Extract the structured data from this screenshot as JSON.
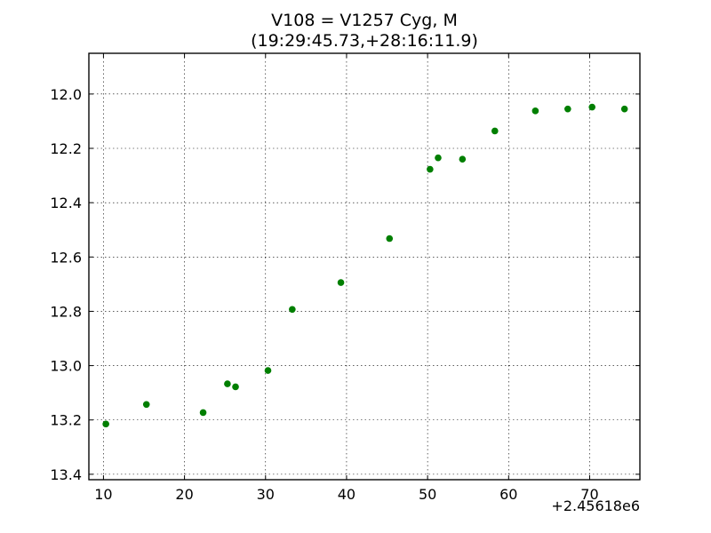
{
  "chart_data": {
    "type": "scatter",
    "title": "V108 = V1257 Cyg, M",
    "subtitle": "(19:29:45.73,+28:16:11.9)",
    "xlabel": "",
    "ylabel": "",
    "x_offset_label": "+2.45618e6",
    "xlim": [
      8.2,
      76.2
    ],
    "ylim": [
      13.42,
      11.85
    ],
    "y_inverted": true,
    "grid": true,
    "marker_color": "#007f00",
    "x_ticks": [
      10,
      20,
      30,
      40,
      50,
      60,
      70
    ],
    "x_tick_labels": [
      "10",
      "20",
      "30",
      "40",
      "50",
      "60",
      "70"
    ],
    "y_ticks": [
      12.0,
      12.2,
      12.4,
      12.6,
      12.8,
      13.0,
      13.2,
      13.4
    ],
    "y_tick_labels": [
      "12.0",
      "12.2",
      "12.4",
      "12.6",
      "12.8",
      "13.0",
      "13.2",
      "13.4"
    ],
    "points": [
      {
        "x": 10.3,
        "y": 13.215
      },
      {
        "x": 15.3,
        "y": 13.143
      },
      {
        "x": 22.3,
        "y": 13.173
      },
      {
        "x": 25.3,
        "y": 13.067
      },
      {
        "x": 26.3,
        "y": 13.078
      },
      {
        "x": 30.3,
        "y": 13.018
      },
      {
        "x": 33.3,
        "y": 12.793
      },
      {
        "x": 39.3,
        "y": 12.694
      },
      {
        "x": 45.3,
        "y": 12.532
      },
      {
        "x": 50.3,
        "y": 12.277
      },
      {
        "x": 51.3,
        "y": 12.235
      },
      {
        "x": 54.3,
        "y": 12.24
      },
      {
        "x": 58.3,
        "y": 12.136
      },
      {
        "x": 63.3,
        "y": 12.062
      },
      {
        "x": 67.3,
        "y": 12.055
      },
      {
        "x": 70.3,
        "y": 12.048
      },
      {
        "x": 74.3,
        "y": 12.055
      }
    ]
  }
}
